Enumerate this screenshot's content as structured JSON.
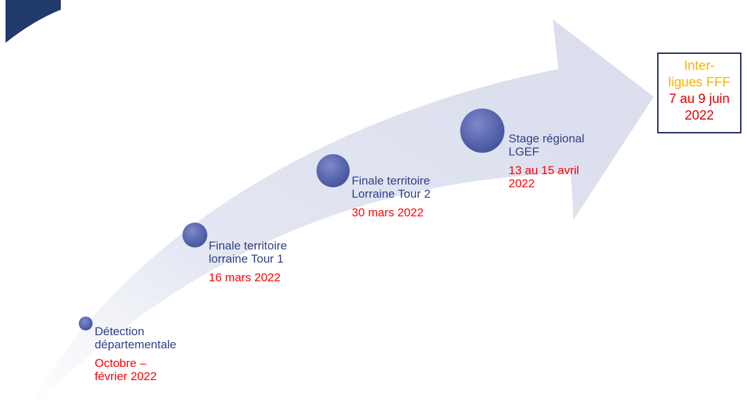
{
  "steps": [
    {
      "title": "Détection\ndépartementale",
      "date": "Octobre –\nfévrier 2022"
    },
    {
      "title": "Finale territoire\nlorraine Tour 1",
      "date": "16 mars 2022"
    },
    {
      "title": "Finale territoire\nLorraine Tour 2",
      "date": "30 mars 2022"
    },
    {
      "title": "Stage régional\nLGEF",
      "date": "13 au 15 avril\n2022"
    }
  ],
  "final": {
    "title": "Inter-\nligues FFF",
    "date": "7 au 9 juin\n2022"
  },
  "colors": {
    "arrow": "#e2e5f0",
    "circle": "#5866b0",
    "title_text": "#2f3e86",
    "date_text": "#ff0000",
    "final_title": "#f4b400",
    "corner": "#1f3a6b"
  }
}
